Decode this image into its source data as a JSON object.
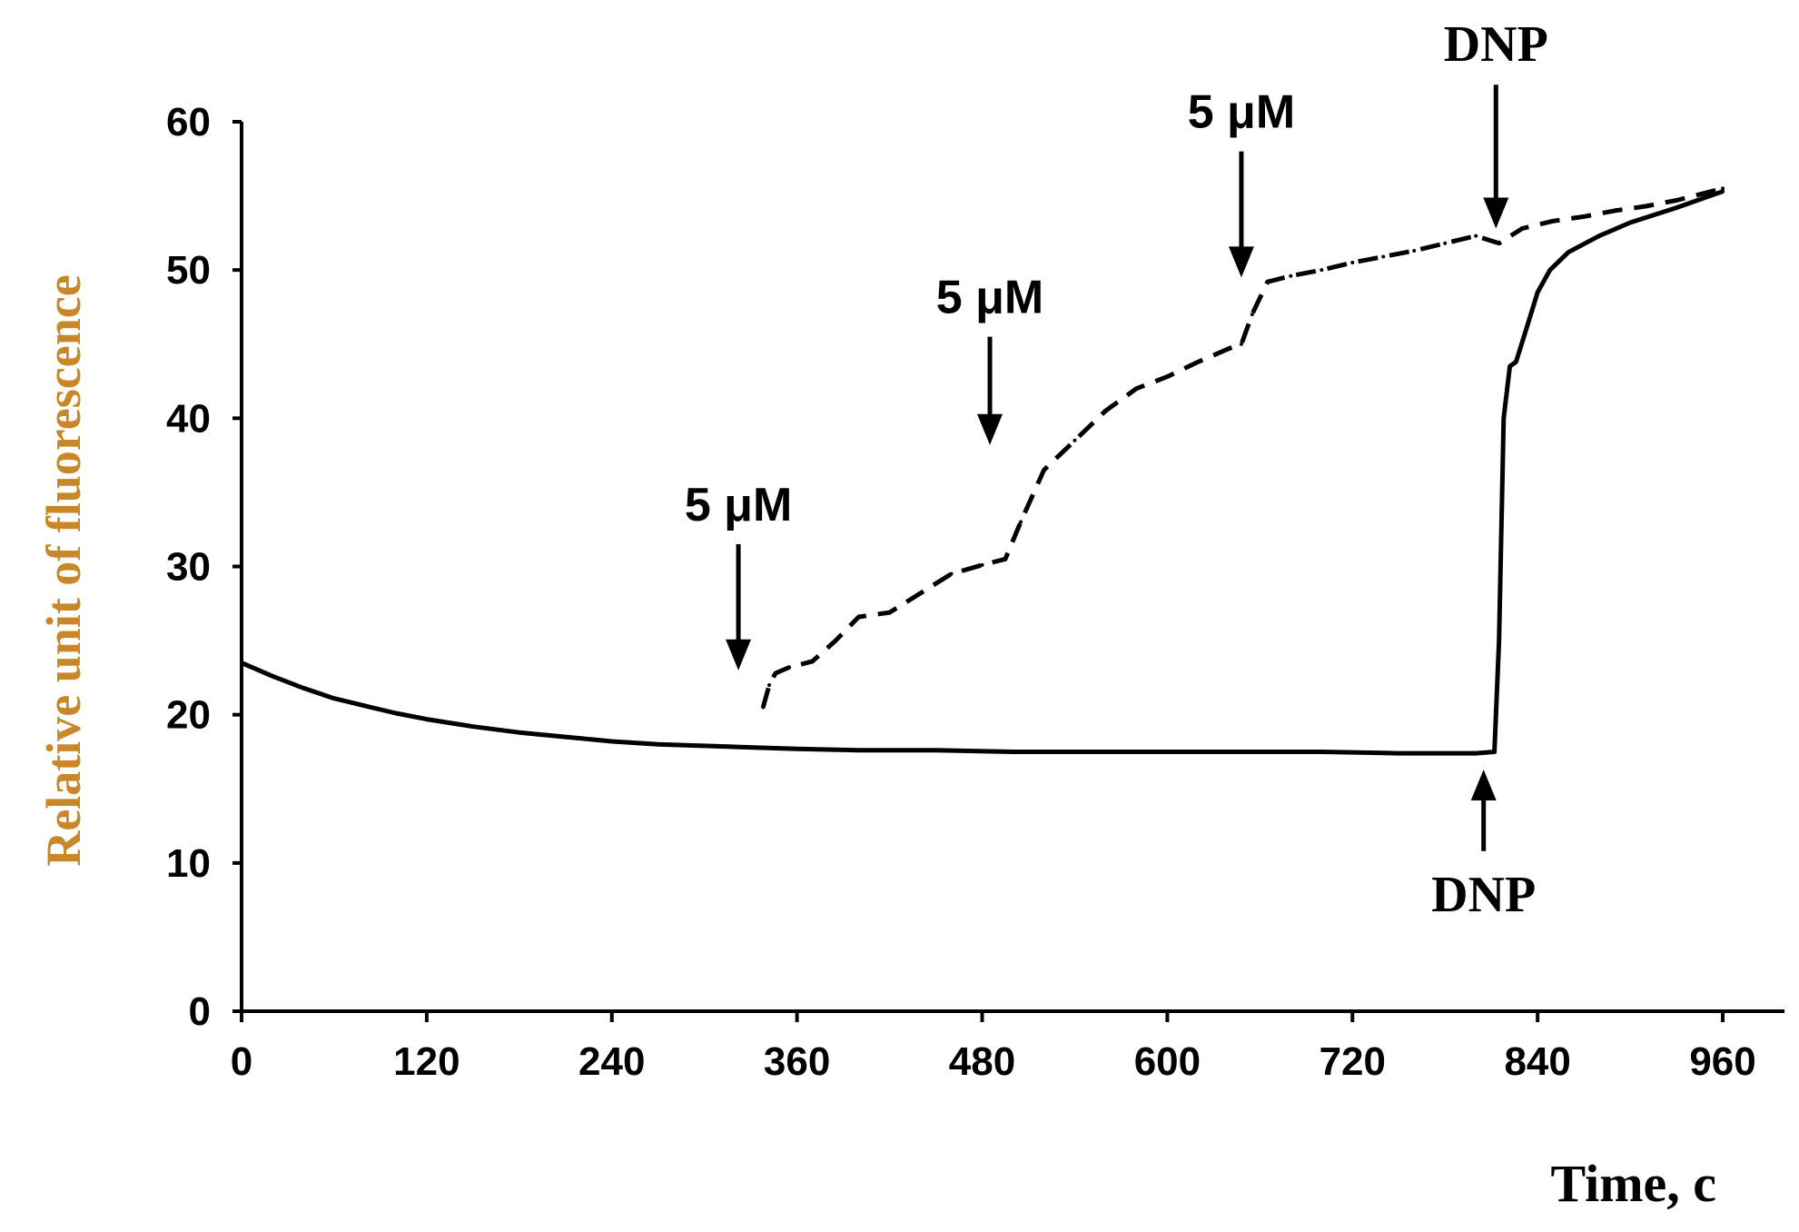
{
  "chart_data": {
    "type": "line",
    "xlabel": "Time, c",
    "ylabel": "Relative unit of fluorescence",
    "xlim": [
      0,
      1000
    ],
    "ylim": [
      0,
      60
    ],
    "xticks": [
      0,
      120,
      240,
      360,
      480,
      600,
      720,
      840,
      960
    ],
    "yticks": [
      0,
      10,
      20,
      30,
      40,
      50,
      60
    ],
    "x_tick_labels": [
      "0",
      "120",
      "240",
      "360",
      "480",
      "600",
      "720",
      "840",
      "960"
    ],
    "y_tick_labels": [
      "0",
      "10",
      "20",
      "30",
      "40",
      "50",
      "60"
    ],
    "grid": false,
    "legend": "none",
    "series": [
      {
        "style": "solid",
        "color": "#000000",
        "x": [
          0,
          20,
          40,
          60,
          80,
          100,
          120,
          150,
          180,
          210,
          240,
          270,
          300,
          330,
          360,
          400,
          450,
          500,
          550,
          600,
          650,
          700,
          750,
          800,
          812,
          815,
          818,
          822,
          826,
          832,
          840,
          848,
          860,
          880,
          900,
          930,
          960
        ],
        "y": [
          23.5,
          22.6,
          21.8,
          21.1,
          20.6,
          20.1,
          19.7,
          19.2,
          18.8,
          18.5,
          18.2,
          18.0,
          17.9,
          17.8,
          17.7,
          17.6,
          17.6,
          17.5,
          17.5,
          17.5,
          17.5,
          17.5,
          17.4,
          17.4,
          17.5,
          25.0,
          40.0,
          43.5,
          43.8,
          45.8,
          48.5,
          50.0,
          51.2,
          52.3,
          53.2,
          54.2,
          55.3
        ]
      },
      {
        "style": "dashed",
        "color": "#000000",
        "x": [
          338,
          342,
          346,
          355,
          370,
          385,
          400,
          420,
          440,
          460,
          480,
          495,
          505,
          520,
          540,
          560,
          580,
          600,
          620,
          640,
          648,
          655,
          665,
          680,
          700,
          720,
          740,
          760,
          780,
          800,
          815,
          830,
          850,
          870,
          890,
          910,
          930,
          960
        ],
        "y": [
          20.5,
          22.0,
          22.8,
          23.2,
          23.6,
          25.0,
          26.6,
          26.9,
          28.2,
          29.5,
          30.1,
          30.5,
          33.0,
          36.5,
          38.5,
          40.5,
          42.0,
          42.8,
          43.8,
          44.7,
          45.0,
          47.0,
          49.2,
          49.6,
          50.0,
          50.5,
          50.9,
          51.3,
          51.8,
          52.3,
          51.8,
          52.8,
          53.3,
          53.6,
          54.0,
          54.3,
          54.7,
          55.5
        ]
      }
    ],
    "annotations": [
      {
        "text": "5 μM",
        "arrow_x": 322,
        "arrow_tip_y": 23.0,
        "arrow_tail_y": 31.5,
        "direction": "down"
      },
      {
        "text": "5 μM",
        "arrow_x": 485,
        "arrow_tip_y": 38.2,
        "arrow_tail_y": 45.5,
        "direction": "down"
      },
      {
        "text": "5 μM",
        "arrow_x": 648,
        "arrow_tip_y": 49.5,
        "arrow_tail_y": 58.0,
        "direction": "down"
      },
      {
        "text": "DNP",
        "arrow_x": 813,
        "arrow_tip_y": 52.8,
        "arrow_tail_y": 62.5,
        "direction": "down"
      },
      {
        "text": "DNP",
        "arrow_x": 805,
        "arrow_tip_y": 16.3,
        "arrow_tail_y": 10.8,
        "direction": "up"
      }
    ]
  }
}
